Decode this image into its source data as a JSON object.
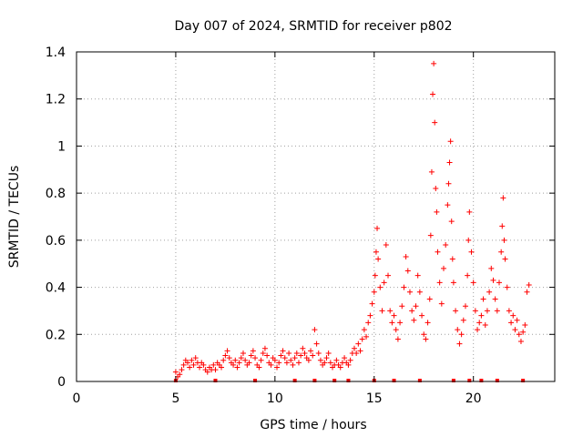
{
  "chart_data": {
    "type": "scatter",
    "title": "Day 007 of 2024, SRMTID for receiver p802",
    "xlabel": "GPS time / hours",
    "ylabel": "SRMTID / TECUs",
    "xlim": [
      0,
      24.1
    ],
    "ylim": [
      0,
      1.4
    ],
    "xticks": [
      0,
      5,
      10,
      15,
      20
    ],
    "xtick_labels": [
      "0",
      "5",
      "10",
      "15",
      "20"
    ],
    "yticks": [
      0,
      0.2,
      0.4,
      0.6,
      0.8,
      1,
      1.2,
      1.4
    ],
    "ytick_labels": [
      "0",
      "0.2",
      "0.4",
      "0.6",
      "0.8",
      "1",
      "1.2",
      "1.4"
    ],
    "grid": true,
    "marker": "plus",
    "color": "#ff0000",
    "series": [
      {
        "name": "SRMTID",
        "points": [
          [
            5.0,
            0.04
          ],
          [
            5.1,
            0.02
          ],
          [
            5.2,
            0.03
          ],
          [
            5.3,
            0.05
          ],
          [
            5.4,
            0.07
          ],
          [
            5.5,
            0.09
          ],
          [
            5.6,
            0.08
          ],
          [
            5.7,
            0.06
          ],
          [
            5.8,
            0.09
          ],
          [
            5.9,
            0.07
          ],
          [
            6.0,
            0.1
          ],
          [
            6.1,
            0.08
          ],
          [
            6.2,
            0.06
          ],
          [
            6.3,
            0.08
          ],
          [
            6.4,
            0.07
          ],
          [
            6.5,
            0.05
          ],
          [
            6.6,
            0.04
          ],
          [
            6.7,
            0.06
          ],
          [
            6.8,
            0.05
          ],
          [
            6.9,
            0.07
          ],
          [
            7.0,
            0.05
          ],
          [
            7.1,
            0.08
          ],
          [
            7.2,
            0.07
          ],
          [
            7.3,
            0.06
          ],
          [
            7.4,
            0.09
          ],
          [
            7.5,
            0.11
          ],
          [
            7.6,
            0.13
          ],
          [
            7.7,
            0.1
          ],
          [
            7.8,
            0.08
          ],
          [
            7.9,
            0.07
          ],
          [
            8.0,
            0.09
          ],
          [
            8.1,
            0.06
          ],
          [
            8.2,
            0.08
          ],
          [
            8.3,
            0.1
          ],
          [
            8.4,
            0.12
          ],
          [
            8.5,
            0.09
          ],
          [
            8.6,
            0.07
          ],
          [
            8.7,
            0.08
          ],
          [
            8.8,
            0.11
          ],
          [
            8.9,
            0.13
          ],
          [
            9.0,
            0.1
          ],
          [
            9.1,
            0.07
          ],
          [
            9.2,
            0.06
          ],
          [
            9.3,
            0.09
          ],
          [
            9.4,
            0.12
          ],
          [
            9.5,
            0.14
          ],
          [
            9.6,
            0.11
          ],
          [
            9.7,
            0.08
          ],
          [
            9.8,
            0.07
          ],
          [
            9.9,
            0.1
          ],
          [
            10.0,
            0.09
          ],
          [
            10.1,
            0.06
          ],
          [
            10.2,
            0.08
          ],
          [
            10.3,
            0.11
          ],
          [
            10.4,
            0.13
          ],
          [
            10.5,
            0.1
          ],
          [
            10.6,
            0.08
          ],
          [
            10.7,
            0.12
          ],
          [
            10.8,
            0.09
          ],
          [
            10.9,
            0.07
          ],
          [
            11.0,
            0.1
          ],
          [
            11.1,
            0.12
          ],
          [
            11.2,
            0.08
          ],
          [
            11.3,
            0.11
          ],
          [
            11.4,
            0.14
          ],
          [
            11.5,
            0.12
          ],
          [
            11.6,
            0.1
          ],
          [
            11.7,
            0.09
          ],
          [
            11.8,
            0.13
          ],
          [
            11.9,
            0.11
          ],
          [
            12.0,
            0.22
          ],
          [
            12.1,
            0.16
          ],
          [
            12.2,
            0.12
          ],
          [
            12.3,
            0.09
          ],
          [
            12.4,
            0.07
          ],
          [
            12.5,
            0.08
          ],
          [
            12.6,
            0.1
          ],
          [
            12.7,
            0.12
          ],
          [
            12.8,
            0.08
          ],
          [
            12.9,
            0.06
          ],
          [
            13.0,
            0.07
          ],
          [
            13.1,
            0.09
          ],
          [
            13.2,
            0.07
          ],
          [
            13.3,
            0.06
          ],
          [
            13.4,
            0.08
          ],
          [
            13.5,
            0.1
          ],
          [
            13.6,
            0.08
          ],
          [
            13.7,
            0.07
          ],
          [
            13.8,
            0.09
          ],
          [
            13.9,
            0.12
          ],
          [
            14.0,
            0.14
          ],
          [
            14.1,
            0.12
          ],
          [
            14.2,
            0.16
          ],
          [
            14.3,
            0.13
          ],
          [
            14.4,
            0.18
          ],
          [
            14.5,
            0.22
          ],
          [
            14.6,
            0.19
          ],
          [
            14.7,
            0.25
          ],
          [
            14.8,
            0.28
          ],
          [
            14.9,
            0.33
          ],
          [
            15.0,
            0.38
          ],
          [
            15.05,
            0.45
          ],
          [
            15.1,
            0.55
          ],
          [
            15.15,
            0.65
          ],
          [
            15.2,
            0.52
          ],
          [
            15.3,
            0.4
          ],
          [
            15.4,
            0.3
          ],
          [
            15.5,
            0.42
          ],
          [
            15.6,
            0.58
          ],
          [
            15.7,
            0.45
          ],
          [
            15.8,
            0.3
          ],
          [
            15.9,
            0.25
          ],
          [
            16.0,
            0.28
          ],
          [
            16.1,
            0.22
          ],
          [
            16.2,
            0.18
          ],
          [
            16.3,
            0.25
          ],
          [
            16.4,
            0.32
          ],
          [
            16.5,
            0.4
          ],
          [
            16.6,
            0.53
          ],
          [
            16.7,
            0.47
          ],
          [
            16.8,
            0.38
          ],
          [
            16.9,
            0.3
          ],
          [
            17.0,
            0.26
          ],
          [
            17.1,
            0.32
          ],
          [
            17.2,
            0.45
          ],
          [
            17.3,
            0.38
          ],
          [
            17.4,
            0.28
          ],
          [
            17.5,
            0.2
          ],
          [
            17.6,
            0.18
          ],
          [
            17.7,
            0.25
          ],
          [
            17.8,
            0.35
          ],
          [
            17.85,
            0.62
          ],
          [
            17.9,
            0.89
          ],
          [
            17.95,
            1.22
          ],
          [
            18.0,
            1.35
          ],
          [
            18.05,
            1.1
          ],
          [
            18.1,
            0.82
          ],
          [
            18.15,
            0.72
          ],
          [
            18.2,
            0.55
          ],
          [
            18.3,
            0.42
          ],
          [
            18.4,
            0.33
          ],
          [
            18.5,
            0.48
          ],
          [
            18.6,
            0.58
          ],
          [
            18.7,
            0.75
          ],
          [
            18.75,
            0.84
          ],
          [
            18.8,
            0.93
          ],
          [
            18.85,
            1.02
          ],
          [
            18.9,
            0.68
          ],
          [
            18.95,
            0.52
          ],
          [
            19.0,
            0.42
          ],
          [
            19.1,
            0.3
          ],
          [
            19.2,
            0.22
          ],
          [
            19.3,
            0.16
          ],
          [
            19.4,
            0.2
          ],
          [
            19.5,
            0.26
          ],
          [
            19.6,
            0.32
          ],
          [
            19.7,
            0.45
          ],
          [
            19.75,
            0.6
          ],
          [
            19.8,
            0.72
          ],
          [
            19.9,
            0.55
          ],
          [
            20.0,
            0.42
          ],
          [
            20.1,
            0.3
          ],
          [
            20.2,
            0.22
          ],
          [
            20.3,
            0.25
          ],
          [
            20.4,
            0.28
          ],
          [
            20.5,
            0.35
          ],
          [
            20.6,
            0.24
          ],
          [
            20.7,
            0.3
          ],
          [
            20.8,
            0.38
          ],
          [
            20.9,
            0.48
          ],
          [
            21.0,
            0.43
          ],
          [
            21.1,
            0.35
          ],
          [
            21.2,
            0.3
          ],
          [
            21.3,
            0.42
          ],
          [
            21.4,
            0.55
          ],
          [
            21.45,
            0.66
          ],
          [
            21.5,
            0.78
          ],
          [
            21.55,
            0.6
          ],
          [
            21.6,
            0.52
          ],
          [
            21.7,
            0.4
          ],
          [
            21.8,
            0.3
          ],
          [
            21.9,
            0.25
          ],
          [
            22.0,
            0.28
          ],
          [
            22.1,
            0.22
          ],
          [
            22.2,
            0.26
          ],
          [
            22.3,
            0.2
          ],
          [
            22.4,
            0.17
          ],
          [
            22.5,
            0.21
          ],
          [
            22.6,
            0.24
          ],
          [
            22.7,
            0.38
          ],
          [
            22.8,
            0.41
          ]
        ]
      }
    ],
    "gap_markers_x": [
      5.0,
      7.0,
      9.0,
      11.0,
      12.0,
      13.0,
      13.7,
      15.0,
      16.0,
      17.3,
      19.0,
      19.8,
      20.4,
      21.2,
      22.5
    ]
  }
}
